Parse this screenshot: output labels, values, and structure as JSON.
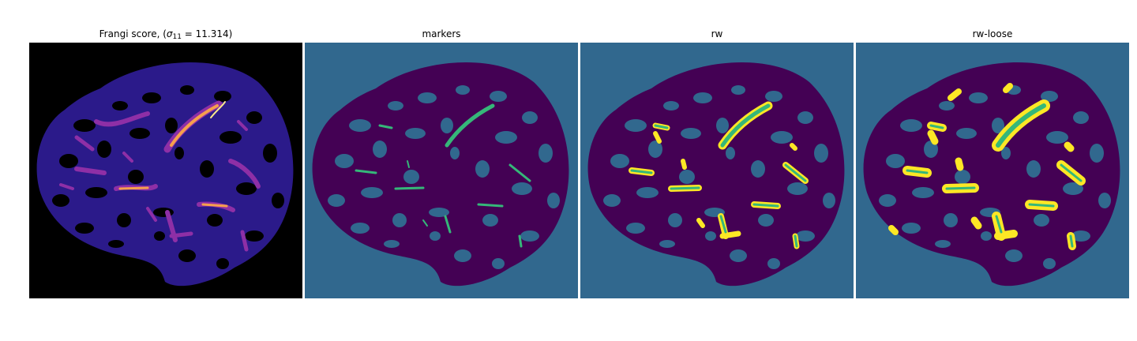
{
  "figure": {
    "panels": [
      {
        "title_prefix": "Frangi score, (",
        "title_sigma": "σ",
        "title_sub": "11",
        "title_suffix": " = 11.314)",
        "colormap": "magma"
      },
      {
        "title": "markers",
        "colormap": "viridis"
      },
      {
        "title": "rw",
        "colormap": "viridis"
      },
      {
        "title": "rw-loose",
        "colormap": "viridis"
      }
    ],
    "colors": {
      "frangi_background": "#000000",
      "frangi_tissue": "#2b1a8a",
      "frangi_mid": "#8e2fa6",
      "frangi_high": "#f6a04d",
      "frangi_peak": "#fde98a",
      "label_background": "#31688e",
      "label_tissue": "#440154",
      "label_marker": "#35b779",
      "label_loose": "#fde725"
    }
  }
}
